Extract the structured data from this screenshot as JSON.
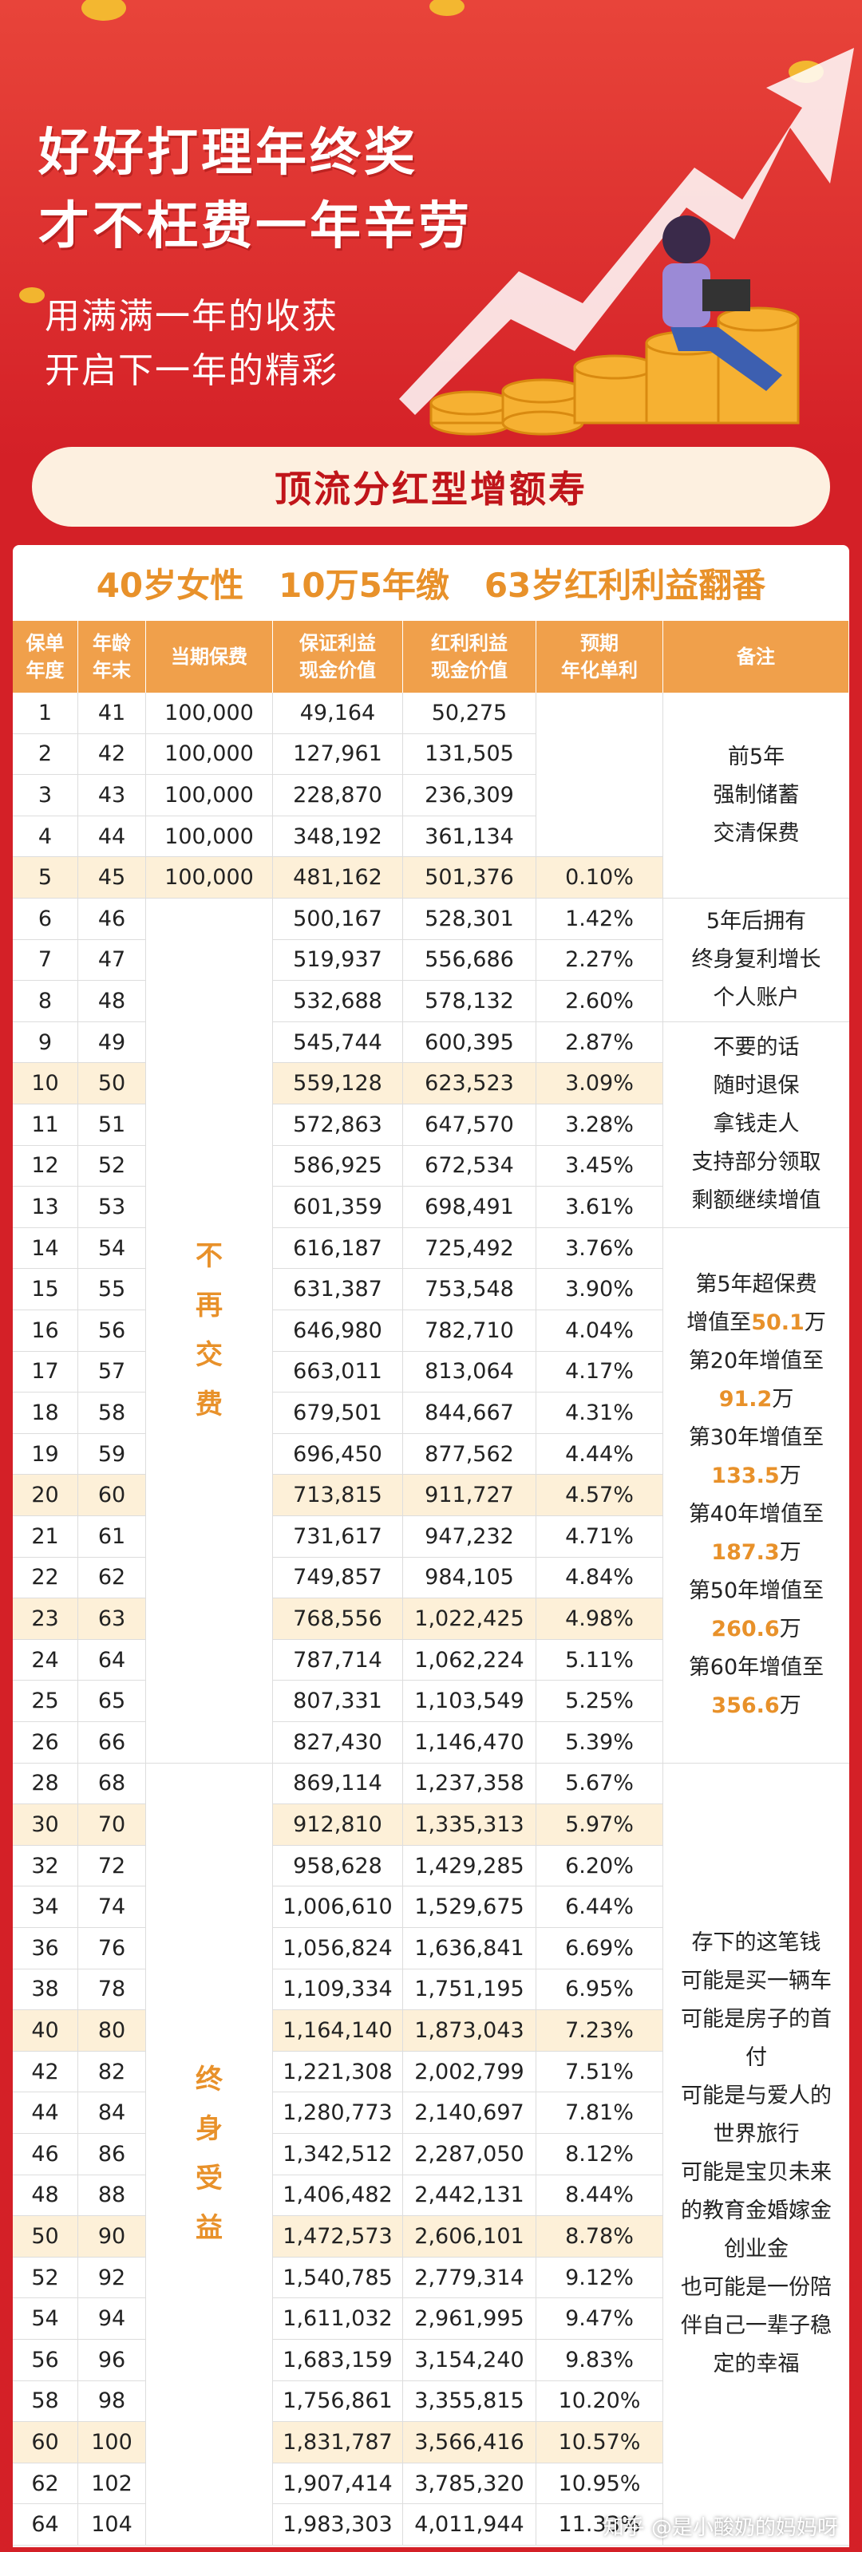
{
  "header": {
    "title_lines": [
      "好好打理年终奖",
      "才不枉费一年辛劳"
    ],
    "subtitle_lines": [
      "用满满一年的收获",
      "开启下一年的精彩"
    ]
  },
  "banner": "顶流分红型增额寿",
  "summary": [
    "40岁女性",
    "10万5年缴",
    "63岁红利利益翻番"
  ],
  "table": {
    "headers": [
      [
        "保单",
        "年度"
      ],
      [
        "年龄",
        "年末"
      ],
      [
        "当期保费"
      ],
      [
        "保证利益",
        "现金价值"
      ],
      [
        "红利利益",
        "现金价值"
      ],
      [
        "预期",
        "年化单利"
      ],
      [
        "备注"
      ]
    ],
    "rows": [
      {
        "year": "1",
        "age": "41",
        "premium": "100,000",
        "guaranteed": "49,164",
        "bonus": "50,275"
      },
      {
        "year": "2",
        "age": "42",
        "premium": "100,000",
        "guaranteed": "127,961",
        "bonus": "131,505"
      },
      {
        "year": "3",
        "age": "43",
        "premium": "100,000",
        "guaranteed": "228,870",
        "bonus": "236,309"
      },
      {
        "year": "4",
        "age": "44",
        "premium": "100,000",
        "guaranteed": "348,192",
        "bonus": "361,134"
      },
      {
        "year": "5",
        "age": "45",
        "premium": "100,000",
        "guaranteed": "481,162",
        "bonus": "501,376",
        "rate": "0.10%",
        "highlight": true
      },
      {
        "year": "6",
        "age": "46",
        "guaranteed": "500,167",
        "bonus": "528,301",
        "rate": "1.42%"
      },
      {
        "year": "7",
        "age": "47",
        "guaranteed": "519,937",
        "bonus": "556,686",
        "rate": "2.27%"
      },
      {
        "year": "8",
        "age": "48",
        "guaranteed": "532,688",
        "bonus": "578,132",
        "rate": "2.60%"
      },
      {
        "year": "9",
        "age": "49",
        "guaranteed": "545,744",
        "bonus": "600,395",
        "rate": "2.87%"
      },
      {
        "year": "10",
        "age": "50",
        "guaranteed": "559,128",
        "bonus": "623,523",
        "rate": "3.09%",
        "highlight": true
      },
      {
        "year": "11",
        "age": "51",
        "guaranteed": "572,863",
        "bonus": "647,570",
        "rate": "3.28%"
      },
      {
        "year": "12",
        "age": "52",
        "guaranteed": "586,925",
        "bonus": "672,534",
        "rate": "3.45%"
      },
      {
        "year": "13",
        "age": "53",
        "guaranteed": "601,359",
        "bonus": "698,491",
        "rate": "3.61%"
      },
      {
        "year": "14",
        "age": "54",
        "guaranteed": "616,187",
        "bonus": "725,492",
        "rate": "3.76%"
      },
      {
        "year": "15",
        "age": "55",
        "guaranteed": "631,387",
        "bonus": "753,548",
        "rate": "3.90%"
      },
      {
        "year": "16",
        "age": "56",
        "guaranteed": "646,980",
        "bonus": "782,710",
        "rate": "4.04%"
      },
      {
        "year": "17",
        "age": "57",
        "guaranteed": "663,011",
        "bonus": "813,064",
        "rate": "4.17%"
      },
      {
        "year": "18",
        "age": "58",
        "guaranteed": "679,501",
        "bonus": "844,667",
        "rate": "4.31%"
      },
      {
        "year": "19",
        "age": "59",
        "guaranteed": "696,450",
        "bonus": "877,562",
        "rate": "4.44%"
      },
      {
        "year": "20",
        "age": "60",
        "guaranteed": "713,815",
        "bonus": "911,727",
        "rate": "4.57%",
        "highlight": true
      },
      {
        "year": "21",
        "age": "61",
        "guaranteed": "731,617",
        "bonus": "947,232",
        "rate": "4.71%"
      },
      {
        "year": "22",
        "age": "62",
        "guaranteed": "749,857",
        "bonus": "984,105",
        "rate": "4.84%"
      },
      {
        "year": "23",
        "age": "63",
        "guaranteed": "768,556",
        "bonus": "1,022,425",
        "rate": "4.98%",
        "highlight": true
      },
      {
        "year": "24",
        "age": "64",
        "guaranteed": "787,714",
        "bonus": "1,062,224",
        "rate": "5.11%"
      },
      {
        "year": "25",
        "age": "65",
        "guaranteed": "807,331",
        "bonus": "1,103,549",
        "rate": "5.25%"
      },
      {
        "year": "26",
        "age": "66",
        "guaranteed": "827,430",
        "bonus": "1,146,470",
        "rate": "5.39%"
      },
      {
        "year": "28",
        "age": "68",
        "guaranteed": "869,114",
        "bonus": "1,237,358",
        "rate": "5.67%"
      },
      {
        "year": "30",
        "age": "70",
        "guaranteed": "912,810",
        "bonus": "1,335,313",
        "rate": "5.97%",
        "highlight": true
      },
      {
        "year": "32",
        "age": "72",
        "guaranteed": "958,628",
        "bonus": "1,429,285",
        "rate": "6.20%"
      },
      {
        "year": "34",
        "age": "74",
        "guaranteed": "1,006,610",
        "bonus": "1,529,675",
        "rate": "6.44%"
      },
      {
        "year": "36",
        "age": "76",
        "guaranteed": "1,056,824",
        "bonus": "1,636,841",
        "rate": "6.69%"
      },
      {
        "year": "38",
        "age": "78",
        "guaranteed": "1,109,334",
        "bonus": "1,751,195",
        "rate": "6.95%"
      },
      {
        "year": "40",
        "age": "80",
        "guaranteed": "1,164,140",
        "bonus": "1,873,043",
        "rate": "7.23%",
        "highlight": true
      },
      {
        "year": "42",
        "age": "82",
        "guaranteed": "1,221,308",
        "bonus": "2,002,799",
        "rate": "7.51%"
      },
      {
        "year": "44",
        "age": "84",
        "guaranteed": "1,280,773",
        "bonus": "2,140,697",
        "rate": "7.81%"
      },
      {
        "year": "46",
        "age": "86",
        "guaranteed": "1,342,512",
        "bonus": "2,287,050",
        "rate": "8.12%"
      },
      {
        "year": "48",
        "age": "88",
        "guaranteed": "1,406,482",
        "bonus": "2,442,131",
        "rate": "8.44%"
      },
      {
        "year": "50",
        "age": "90",
        "guaranteed": "1,472,573",
        "bonus": "2,606,101",
        "rate": "8.78%",
        "highlight": true
      },
      {
        "year": "52",
        "age": "92",
        "guaranteed": "1,540,785",
        "bonus": "2,779,314",
        "rate": "9.12%"
      },
      {
        "year": "54",
        "age": "94",
        "guaranteed": "1,611,032",
        "bonus": "2,961,995",
        "rate": "9.47%"
      },
      {
        "year": "56",
        "age": "96",
        "guaranteed": "1,683,159",
        "bonus": "3,154,240",
        "rate": "9.83%"
      },
      {
        "year": "58",
        "age": "98",
        "guaranteed": "1,756,861",
        "bonus": "3,355,815",
        "rate": "10.20%"
      },
      {
        "year": "60",
        "age": "100",
        "guaranteed": "1,831,787",
        "bonus": "3,566,416",
        "rate": "10.57%",
        "highlight": true
      },
      {
        "year": "62",
        "age": "102",
        "guaranteed": "1,907,414",
        "bonus": "3,785,320",
        "rate": "10.95%"
      },
      {
        "year": "64",
        "age": "104",
        "guaranteed": "1,983,303",
        "bonus": "4,011,944",
        "rate": "11.33%"
      }
    ],
    "premium_notes": [
      "不再交费",
      "终身受益"
    ],
    "notes": [
      [
        [
          {
            "t": "前5年"
          }
        ],
        [
          {
            "t": "强制储蓄"
          }
        ],
        [
          {
            "t": "交清保费"
          }
        ]
      ],
      [
        [
          {
            "t": "5年后拥有"
          }
        ],
        [
          {
            "t": "终身复利增长"
          }
        ],
        [
          {
            "t": "个人账户"
          }
        ]
      ],
      [
        [
          {
            "t": "不要的话"
          }
        ],
        [
          {
            "t": "随时退保"
          }
        ],
        [
          {
            "t": "拿钱走人"
          }
        ],
        [
          {
            "t": "支持部分领取"
          }
        ],
        [
          {
            "t": "剩额继续增值"
          }
        ]
      ],
      [
        [
          {
            "t": "第5年超保费"
          }
        ],
        [
          {
            "t": "增值至"
          },
          {
            "t": "50.1",
            "hl": true
          },
          {
            "t": "万"
          }
        ],
        [
          {
            "t": "第20年增值至"
          }
        ],
        [
          {
            "t": "91.2",
            "hl": true
          },
          {
            "t": "万"
          }
        ],
        [
          {
            "t": "第30年增值至"
          }
        ],
        [
          {
            "t": "133.5",
            "hl": true
          },
          {
            "t": "万"
          }
        ],
        [
          {
            "t": "第40年增值至"
          }
        ],
        [
          {
            "t": "187.3",
            "hl": true
          },
          {
            "t": "万"
          }
        ],
        [
          {
            "t": "第50年增值至"
          }
        ],
        [
          {
            "t": "260.6",
            "hl": true
          },
          {
            "t": "万"
          }
        ],
        [
          {
            "t": "第60年增值至"
          }
        ],
        [
          {
            "t": "356.6",
            "hl": true
          },
          {
            "t": "万"
          }
        ]
      ],
      [
        [
          {
            "t": "存下的这笔钱"
          }
        ],
        [
          {
            "t": "可能是买一辆车"
          }
        ],
        [
          {
            "t": "可能是房子的首"
          }
        ],
        [
          {
            "t": "付"
          }
        ],
        [
          {
            "t": "可能是与爱人的"
          }
        ],
        [
          {
            "t": "世界旅行"
          }
        ],
        [
          {
            "t": "可能是宝贝未来"
          }
        ],
        [
          {
            "t": "的教育金婚嫁金"
          }
        ],
        [
          {
            "t": "创业金"
          }
        ],
        [
          {
            "t": "也可能是一份陪"
          }
        ],
        [
          {
            "t": "伴自己一辈子稳"
          }
        ],
        [
          {
            "t": "定的幸福"
          }
        ]
      ]
    ]
  },
  "watermark": "知乎 @是小酸奶的妈妈呀"
}
